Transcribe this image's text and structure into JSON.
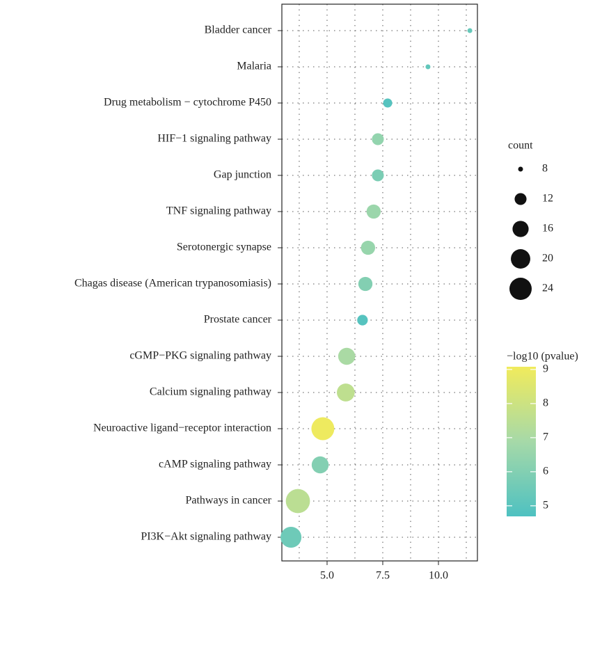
{
  "chart_data": {
    "type": "bubble",
    "categories": [
      "Bladder cancer",
      "Malaria",
      "Drug metabolism − cytochrome P450",
      "HIF−1 signaling pathway",
      "Gap junction",
      "TNF signaling pathway",
      "Serotonergic synapse",
      "Chagas disease (American trypanosomiasis)",
      "Prostate cancer",
      "cGMP−PKG signaling pathway",
      "Calcium signaling pathway",
      "Neuroactive ligand−receptor interaction",
      "cAMP signaling pathway",
      "Pathways in cancer",
      "PI3K−Akt signaling pathway"
    ],
    "values": [
      11.41,
      9.53,
      7.72,
      7.28,
      7.28,
      7.09,
      6.84,
      6.72,
      6.59,
      5.88,
      5.84,
      4.81,
      4.69,
      3.69,
      3.38
    ],
    "size_values": [
      8,
      8,
      10,
      12,
      12,
      14,
      14,
      14,
      11,
      17,
      18,
      25,
      17,
      27,
      22
    ],
    "color_values": [
      5.3,
      5.2,
      4.9,
      6.4,
      5.8,
      6.6,
      6.5,
      6.0,
      4.9,
      7.0,
      7.6,
      9.0,
      6.0,
      7.5,
      5.5
    ],
    "xlim": [
      2.97,
      11.75
    ],
    "xticks": [
      {
        "value": 5,
        "label": "5.0"
      },
      {
        "value": 7.5,
        "label": "7.5"
      },
      {
        "value": 10,
        "label": "10.0"
      }
    ],
    "xminor": [
      3.75,
      6.25,
      8.75,
      11.25
    ],
    "grid": true,
    "size_title": "count",
    "size_ticks": [
      8,
      12,
      16,
      20,
      24
    ],
    "color_title": "−log10 (pvalue)",
    "clim": [
      4.69,
      9.08
    ],
    "cticks": [
      5,
      6,
      7,
      8,
      9
    ],
    "colors": [
      "#4ec1c1",
      "#a6d9a8",
      "#f1eb5c"
    ]
  }
}
